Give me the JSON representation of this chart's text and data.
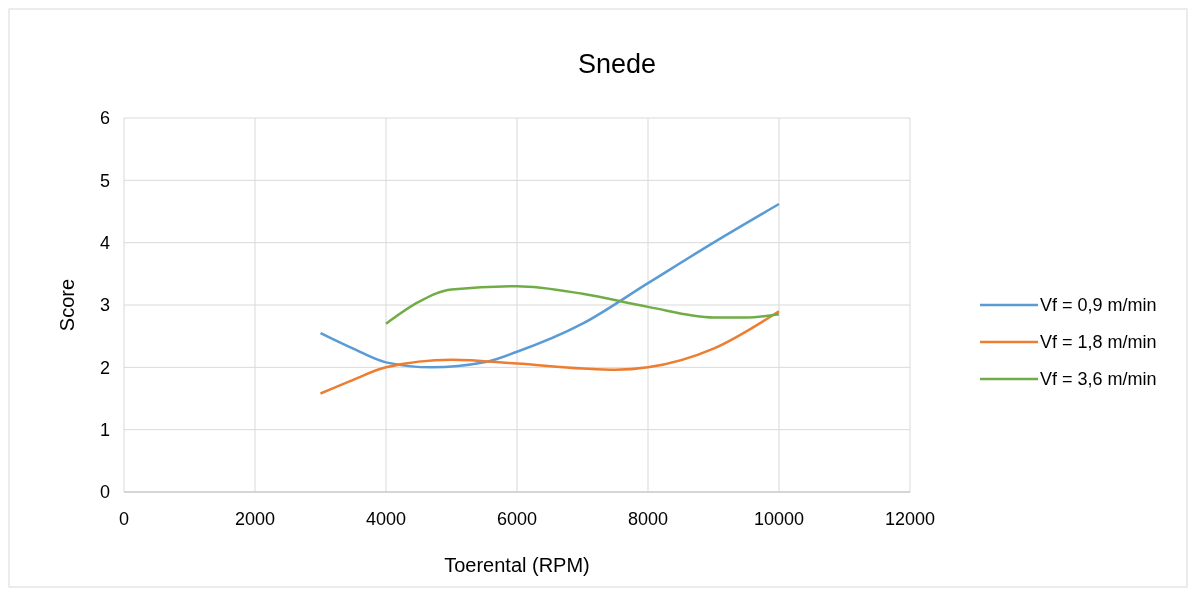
{
  "chart_data": {
    "type": "line",
    "title": "Snede",
    "xlabel": "Toerental (RPM)",
    "ylabel": "Score",
    "xlim": [
      0,
      12000
    ],
    "xticks": [
      0,
      2000,
      4000,
      6000,
      8000,
      10000,
      12000
    ],
    "ylim": [
      0,
      6
    ],
    "yticks": [
      0,
      1,
      2,
      3,
      4,
      5,
      6
    ],
    "grid": true,
    "legend": "right",
    "marker": "none",
    "series": [
      {
        "name": "Vf = 0,9 m/min",
        "color": "#5b9bd5",
        "x": [
          3000,
          3500,
          4000,
          4700,
          5500,
          6000,
          7000,
          8000,
          9000,
          10000
        ],
        "values": [
          2.55,
          2.3,
          2.08,
          2.0,
          2.08,
          2.25,
          2.7,
          3.35,
          4.0,
          4.62
        ]
      },
      {
        "name": "Vf = 1,8 m/min",
        "color": "#ed7d31",
        "x": [
          3000,
          3500,
          4000,
          5000,
          6000,
          7000,
          7500,
          8000,
          9000,
          10000
        ],
        "values": [
          1.58,
          1.8,
          2.0,
          2.12,
          2.06,
          1.98,
          1.96,
          2.0,
          2.3,
          2.9
        ]
      },
      {
        "name": "Vf = 3,6 m/min",
        "color": "#70ad47",
        "x": [
          4000,
          4500,
          5000,
          6000,
          7000,
          8000,
          9000,
          9500,
          10000
        ],
        "values": [
          2.7,
          3.05,
          3.25,
          3.3,
          3.18,
          2.97,
          2.8,
          2.8,
          2.85
        ]
      }
    ]
  }
}
